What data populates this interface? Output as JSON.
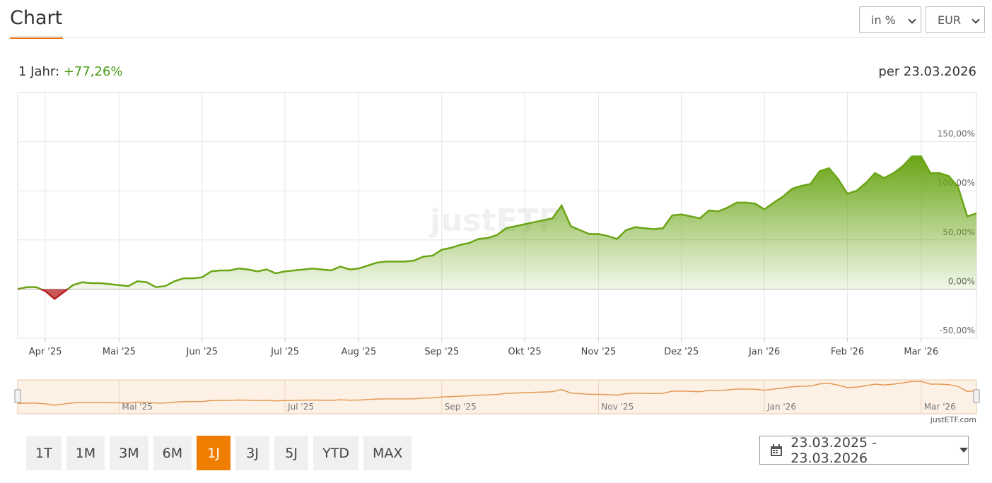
{
  "header": {
    "title": "Chart",
    "unit_select": "in %",
    "currency_select": "EUR"
  },
  "performance": {
    "period_label": "1 Jahr:",
    "period_value": "+77,26%",
    "as_of": "per 23.03.2026"
  },
  "chart_data": {
    "type": "line",
    "watermark": "justETF",
    "credit": "justETF.com",
    "categories": [
      null,
      null,
      null,
      "Apr '25",
      null,
      null,
      null,
      null,
      null,
      null,
      null,
      "Mai '25",
      null,
      null,
      null,
      null,
      null,
      null,
      null,
      null,
      "Jun '25",
      null,
      null,
      null,
      null,
      null,
      null,
      null,
      null,
      "Jul '25",
      null,
      null,
      null,
      null,
      null,
      null,
      null,
      "Aug '25",
      null,
      null,
      null,
      null,
      null,
      null,
      null,
      null,
      "Sep '25",
      null,
      null,
      null,
      null,
      null,
      null,
      null,
      null,
      "Okt '25",
      null,
      null,
      null,
      null,
      null,
      null,
      null,
      "Nov '25",
      null,
      null,
      null,
      null,
      null,
      null,
      null,
      null,
      "Dez '25",
      null,
      null,
      null,
      null,
      null,
      null,
      null,
      null,
      "Jan '26",
      null,
      null,
      null,
      null,
      null,
      null,
      null,
      null,
      "Feb '26",
      null,
      null,
      null,
      null,
      null,
      null,
      null,
      "Mar '26",
      null,
      null,
      null,
      null,
      null,
      null
    ],
    "series": [
      {
        "color": "#6aa515",
        "negative_color": "#b81f1f",
        "values": [
          0,
          2,
          2,
          -2,
          -10,
          -3,
          4,
          7,
          6,
          6,
          5,
          4,
          3,
          8,
          7,
          2,
          3,
          8,
          11,
          11,
          12,
          18,
          19,
          19,
          21,
          20,
          18,
          20,
          16,
          18,
          19,
          20,
          21,
          20,
          19,
          23,
          20,
          21,
          24,
          27,
          28,
          28,
          28,
          29,
          33,
          34,
          40,
          42,
          45,
          47,
          51,
          52,
          55,
          62,
          64,
          66,
          68,
          70,
          72,
          85,
          64,
          60,
          56,
          56,
          54,
          51,
          60,
          63,
          62,
          61,
          62,
          75,
          76,
          74,
          72,
          80,
          79,
          83,
          88,
          88,
          87,
          81,
          88,
          94,
          102,
          105,
          107,
          120,
          123,
          112,
          97,
          100,
          108,
          118,
          113,
          118,
          125,
          135,
          135,
          118,
          118,
          115,
          104,
          74,
          77
        ]
      }
    ],
    "ylim": [
      -50,
      200
    ],
    "yticks": [
      {
        "value": -50,
        "label": "-50,00%"
      },
      {
        "value": 0,
        "label": "0,00%"
      },
      {
        "value": 50,
        "label": "50,00%"
      },
      {
        "value": 100,
        "label": "100,00%"
      },
      {
        "value": 150,
        "label": "150,00%"
      }
    ],
    "grid": true
  },
  "ranges": {
    "buttons": [
      "1T",
      "1M",
      "3M",
      "6M",
      "1J",
      "3J",
      "5J",
      "YTD",
      "MAX"
    ],
    "active": "1J",
    "date_range": "23.03.2025 - 23.03.2026"
  }
}
